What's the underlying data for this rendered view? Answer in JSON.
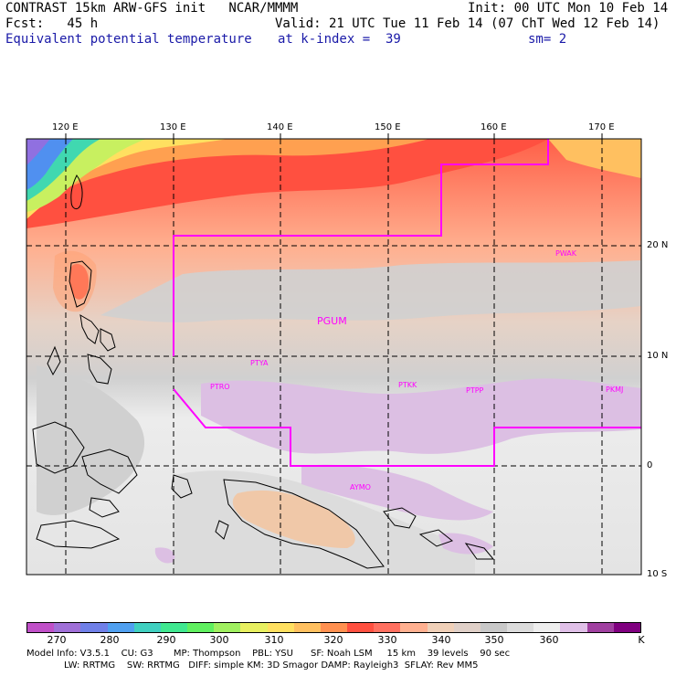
{
  "header": {
    "line1_left": "CONTRAST 15km ARW-GFS init   NCAR/MMMM",
    "line1_right": "Init: 00 UTC Mon 10 Feb 14",
    "line2_left": "Fcst:   45 h",
    "line2_right": "Valid: 21 UTC Tue 11 Feb 14 (07 ChT Wed 12 Feb 14)",
    "field_name": "Equivalent potential temperature",
    "level_text": "at k-index =  39",
    "smooth_text": "sm= 2"
  },
  "map": {
    "lon_labels": [
      "120 E",
      "130 E",
      "140 E",
      "150 E",
      "160 E",
      "170 E"
    ],
    "lat_labels": [
      "20 N",
      "10 N",
      "0",
      "10 S"
    ],
    "stations": [
      "PWAK",
      "PGUM",
      "PTYA",
      "PTRO",
      "PTKK",
      "PTPP",
      "PKMJ",
      "AYMO"
    ],
    "line_color": "#ff00ff",
    "grid_color": "#000000"
  },
  "colorbar": {
    "unit": "K",
    "tick_labels": [
      "270",
      "280",
      "290",
      "300",
      "310",
      "320",
      "330",
      "340",
      "350",
      "360"
    ],
    "colors": [
      "#c050c8",
      "#a070d8",
      "#7080e8",
      "#50a0f0",
      "#40d0c0",
      "#40e890",
      "#60f060",
      "#a0f060",
      "#e8f060",
      "#ffe060",
      "#ffc060",
      "#ff9050",
      "#ff5040",
      "#ff7060",
      "#ffb090",
      "#f0d0b8",
      "#e0d0c8",
      "#c8c8c8",
      "#dcdcdc",
      "#eeeeee",
      "#e0c0e8",
      "#a040a0",
      "#800080"
    ]
  },
  "model_info": {
    "line1": "Model Info: V3.5.1    CU: G3       MP: Thompson    PBL: YSU      SF: Noah LSM     15 km    39 levels    90 sec",
    "line2": "LW: RRTMG    SW: RRTMG   DIFF: simple KM: 3D Smagor DAMP: Rayleigh3  SFLAY: Rev MM5"
  }
}
